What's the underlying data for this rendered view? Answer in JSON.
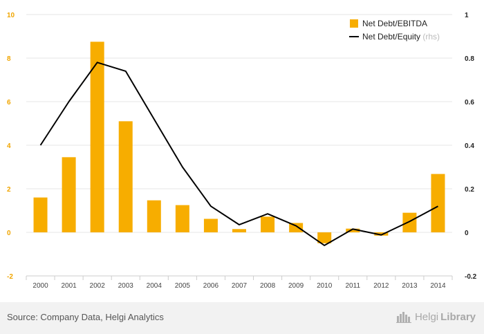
{
  "chart_data": {
    "type": "bar",
    "categories": [
      "2000",
      "2001",
      "2002",
      "2003",
      "2004",
      "2005",
      "2006",
      "2007",
      "2008",
      "2009",
      "2010",
      "2011",
      "2012",
      "2013",
      "2014"
    ],
    "series": [
      {
        "name": "Net Debt/EBITDA",
        "type": "bar",
        "axis": "left",
        "values": [
          1.6,
          3.45,
          8.75,
          5.1,
          1.47,
          1.25,
          0.62,
          0.15,
          0.72,
          0.43,
          -0.5,
          0.17,
          -0.15,
          0.9,
          2.68
        ]
      },
      {
        "name": "Net Debt/Equity",
        "type": "line",
        "axis": "right",
        "values": [
          0.4,
          0.6,
          0.78,
          0.74,
          0.52,
          0.3,
          0.12,
          0.035,
          0.085,
          0.03,
          -0.06,
          0.015,
          -0.012,
          0.05,
          0.12
        ]
      }
    ],
    "y_left": {
      "min": -2,
      "max": 10,
      "ticks": [
        "-2",
        "0",
        "2",
        "4",
        "6",
        "8",
        "10"
      ]
    },
    "y_right": {
      "min": -0.2,
      "max": 1,
      "ticks": [
        "-0.2",
        "0",
        "0.2",
        "0.4",
        "0.6",
        "0.8",
        "1"
      ]
    },
    "legend": {
      "position": "top-right",
      "rhs_suffix": "(rhs)"
    },
    "grid": true
  },
  "colors": {
    "bar": "#f7ad00",
    "line": "#000000",
    "left_axis_text": "#f0a500",
    "right_axis_text": "#222222",
    "grid": "#e6e6e6"
  },
  "footer": {
    "source": "Source: Company Data, Helgi Analytics",
    "brand_light": "Helgi",
    "brand_bold": "Library"
  },
  "icons": {
    "brand": "library-buildings-icon"
  }
}
